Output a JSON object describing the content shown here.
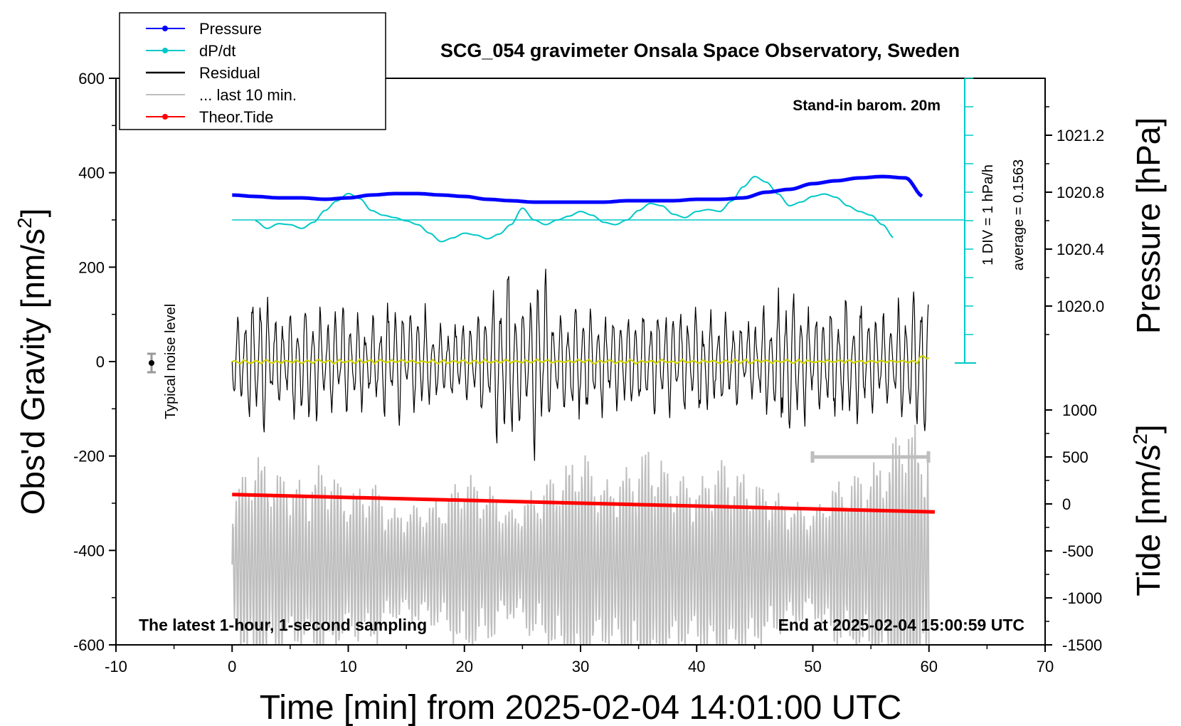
{
  "chart_data": {
    "type": "line",
    "title": "SCG_054 gravimeter Onsala Space Observatory, Sweden",
    "xlabel": "Time [min] from 2025-02-04 14:01:00 UTC",
    "ylabel_left": "Obs'd Gravity [nm/s",
    "ylabel_left_sup": "2",
    "ylabel_left_end": "]",
    "ylabel_right_top": "Pressure [hPa]",
    "ylabel_right_bottom": "Tide [nm/s",
    "ylabel_right_bottom_sup": "2",
    "ylabel_right_bottom_end": "]",
    "xlim": [
      -10,
      70
    ],
    "ylim": [
      -600,
      600
    ],
    "pressure_lim": [
      1019.6,
      1021.6
    ],
    "tide_lim": [
      -1500,
      1500
    ],
    "x_ticks": [
      "-10",
      "0",
      "10",
      "20",
      "30",
      "40",
      "50",
      "60",
      "70"
    ],
    "y_ticks": [
      "-600",
      "-400",
      "-200",
      "0",
      "200",
      "400",
      "600"
    ],
    "pressure_ticks": [
      "1020.0",
      "1020.4",
      "1020.8",
      "1021.2"
    ],
    "tide_ticks": [
      "-1500",
      "-1000",
      "-500",
      "0",
      "500",
      "1000"
    ],
    "annotations": {
      "barometer": "Stand-in barom. 20m",
      "div": "1 DIV = 1 hPa/h",
      "average": "average = 0.1563",
      "noise": "Typical noise level",
      "latest": "The latest 1-hour, 1-second sampling",
      "end": "End at 2025-02-04 15:00:59 UTC"
    },
    "legend": [
      {
        "label": "Pressure",
        "color": "#0000ff",
        "marker": true
      },
      {
        "label": "dP/dt",
        "color": "#00c8c8",
        "marker": true
      },
      {
        "label": "Residual",
        "color": "#000000",
        "marker": false
      },
      {
        "label": "... last 10 min.",
        "color": "#bebebe",
        "marker": false
      },
      {
        "label": "Theor.Tide",
        "color": "#ff0000",
        "marker": true
      }
    ],
    "series": [
      {
        "name": "Pressure",
        "axis": "pressure",
        "color": "#0000ff",
        "x": [
          0,
          2,
          4,
          6,
          8,
          10,
          12,
          14,
          16,
          18,
          20,
          22,
          24,
          26,
          28,
          30,
          32,
          34,
          36,
          38,
          40,
          42,
          44,
          46,
          48,
          50,
          52,
          54,
          56,
          58,
          59.5
        ],
        "values": [
          1020.78,
          1020.77,
          1020.76,
          1020.76,
          1020.75,
          1020.76,
          1020.78,
          1020.79,
          1020.79,
          1020.78,
          1020.77,
          1020.75,
          1020.74,
          1020.73,
          1020.73,
          1020.73,
          1020.73,
          1020.74,
          1020.74,
          1020.74,
          1020.75,
          1020.75,
          1020.76,
          1020.8,
          1020.82,
          1020.86,
          1020.88,
          1020.9,
          1020.91,
          1020.9,
          1020.77
        ]
      },
      {
        "name": "dP/dt",
        "axis": "gravity",
        "color": "#00c8c8",
        "x": [
          2,
          3,
          4,
          5,
          6,
          7,
          8,
          9,
          10,
          11,
          12,
          13,
          14,
          15,
          16,
          17,
          18,
          19,
          20,
          21,
          22,
          23,
          24,
          25,
          26,
          27,
          28,
          29,
          30,
          31,
          32,
          33,
          34,
          35,
          36,
          37,
          38,
          39,
          40,
          41,
          42,
          43,
          44,
          45,
          46,
          47,
          48,
          49,
          50,
          51,
          52,
          53,
          54,
          55,
          56,
          57
        ],
        "values": [
          298,
          282,
          292,
          290,
          282,
          295,
          320,
          340,
          356,
          345,
          320,
          310,
          305,
          298,
          290,
          272,
          254,
          262,
          272,
          268,
          260,
          270,
          290,
          325,
          300,
          290,
          300,
          308,
          318,
          310,
          295,
          290,
          300,
          320,
          335,
          330,
          312,
          305,
          318,
          322,
          318,
          340,
          370,
          392,
          380,
          355,
          330,
          338,
          350,
          355,
          348,
          330,
          318,
          310,
          290,
          262
        ]
      },
      {
        "name": "Theor.Tide",
        "axis": "tide",
        "color": "#ff0000",
        "x": [
          0,
          60.5
        ],
        "values": [
          100,
          -85
        ]
      }
    ]
  }
}
